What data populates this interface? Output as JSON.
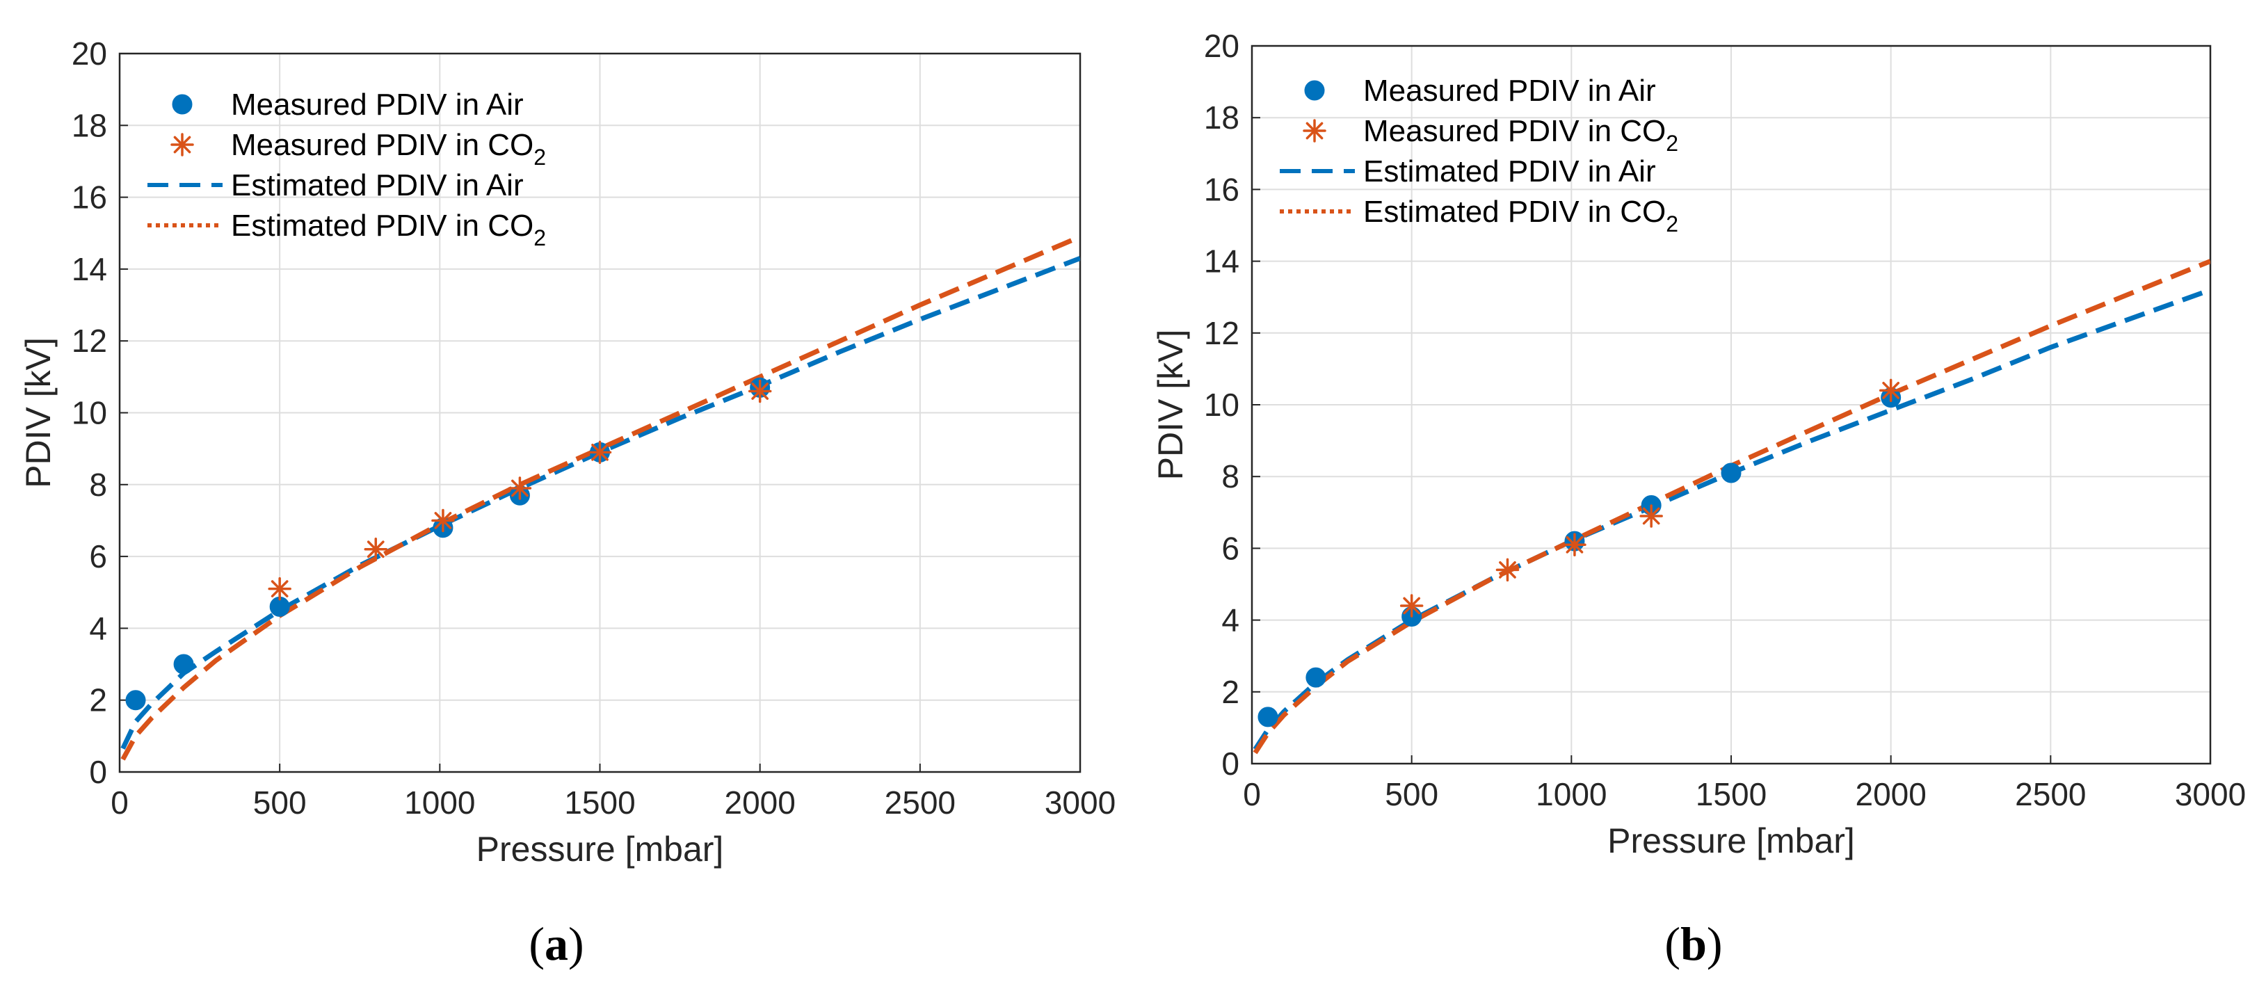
{
  "chart_data": [
    {
      "type": "scatter",
      "panel_label": "a",
      "xlabel": "Pressure [mbar]",
      "ylabel": "PDIV [kV]",
      "xlim": [
        0,
        3000
      ],
      "ylim": [
        0,
        20
      ],
      "xticks": [
        "0",
        "500",
        "1000",
        "1500",
        "2000",
        "2500",
        "3000"
      ],
      "yticks": [
        "0",
        "2",
        "4",
        "6",
        "8",
        "10",
        "12",
        "14",
        "16",
        "18",
        "20"
      ],
      "grid": true,
      "legend_position": "top-left",
      "series": [
        {
          "name": "Measured PDIV in Air",
          "label_main": "Measured PDIV in Air",
          "label_sub": "",
          "kind": "marker-dot",
          "color": "#0072BD",
          "x": [
            50,
            200,
            500,
            1010,
            1250,
            1500,
            2000
          ],
          "y": [
            2.0,
            3.0,
            4.6,
            6.8,
            7.7,
            8.9,
            10.7
          ]
        },
        {
          "name": "Measured PDIV in CO2",
          "label_main": "Measured PDIV in CO",
          "label_sub": "2",
          "kind": "marker-asterisk",
          "color": "#D95319",
          "x": [
            500,
            800,
            1010,
            1250,
            1500,
            2000
          ],
          "y": [
            5.1,
            6.2,
            7.0,
            7.9,
            8.9,
            10.6
          ]
        },
        {
          "name": "Estimated PDIV in Air",
          "label_main": "Estimated PDIV in Air",
          "label_sub": "",
          "kind": "line-dashed",
          "color": "#0072BD",
          "x": [
            10,
            50,
            100,
            200,
            300,
            500,
            750,
            1000,
            1250,
            1500,
            1750,
            2000,
            2250,
            2500,
            2750,
            3000
          ],
          "y": [
            0.65,
            1.4,
            1.9,
            2.75,
            3.35,
            4.5,
            5.75,
            6.85,
            7.9,
            8.9,
            9.85,
            10.75,
            11.7,
            12.6,
            13.45,
            14.3
          ]
        },
        {
          "name": "Estimated PDIV in CO2",
          "label_main": "Estimated PDIV in CO",
          "label_sub": "2",
          "kind": "line-dotted",
          "color": "#D95319",
          "x": [
            10,
            50,
            100,
            200,
            300,
            500,
            750,
            1000,
            1250,
            1500,
            1750,
            2000,
            2250,
            2500,
            2750,
            3000
          ],
          "y": [
            0.35,
            1.0,
            1.5,
            2.35,
            3.1,
            4.35,
            5.7,
            6.9,
            8.0,
            9.0,
            10.0,
            11.0,
            12.0,
            13.0,
            13.95,
            14.9
          ]
        }
      ]
    },
    {
      "type": "scatter",
      "panel_label": "b",
      "xlabel": "Pressure [mbar]",
      "ylabel": "PDIV [kV]",
      "xlim": [
        0,
        3000
      ],
      "ylim": [
        0,
        20
      ],
      "xticks": [
        "0",
        "500",
        "1000",
        "1500",
        "2000",
        "2500",
        "3000"
      ],
      "yticks": [
        "0",
        "2",
        "4",
        "6",
        "8",
        "10",
        "12",
        "14",
        "16",
        "18",
        "20"
      ],
      "grid": true,
      "legend_position": "top-left",
      "series": [
        {
          "name": "Measured PDIV in Air",
          "label_main": "Measured PDIV in Air",
          "label_sub": "",
          "kind": "marker-dot",
          "color": "#0072BD",
          "x": [
            50,
            200,
            500,
            1010,
            1250,
            1500,
            2000
          ],
          "y": [
            1.3,
            2.4,
            4.1,
            6.2,
            7.2,
            8.1,
            10.2
          ]
        },
        {
          "name": "Measured PDIV in CO2",
          "label_main": "Measured PDIV in CO",
          "label_sub": "2",
          "kind": "marker-asterisk",
          "color": "#D95319",
          "x": [
            500,
            800,
            1010,
            1250,
            2000
          ],
          "y": [
            4.4,
            5.4,
            6.1,
            6.9,
            10.4
          ]
        },
        {
          "name": "Estimated PDIV in Air",
          "label_main": "Estimated PDIV in Air",
          "label_sub": "",
          "kind": "line-dashed",
          "color": "#0072BD",
          "x": [
            10,
            50,
            100,
            200,
            300,
            500,
            750,
            1000,
            1250,
            1500,
            1750,
            2000,
            2250,
            2500,
            2750,
            3000
          ],
          "y": [
            0.4,
            0.95,
            1.45,
            2.25,
            2.9,
            4.0,
            5.15,
            6.2,
            7.15,
            8.1,
            9.0,
            9.85,
            10.7,
            11.6,
            12.4,
            13.2
          ]
        },
        {
          "name": "Estimated PDIV in CO2",
          "label_main": "Estimated PDIV in CO",
          "label_sub": "2",
          "kind": "line-dotted",
          "color": "#D95319",
          "x": [
            10,
            50,
            100,
            200,
            300,
            500,
            750,
            1000,
            1250,
            1500,
            1750,
            2000,
            2250,
            2500,
            2750,
            3000
          ],
          "y": [
            0.3,
            0.85,
            1.35,
            2.15,
            2.85,
            3.95,
            5.15,
            6.2,
            7.25,
            8.3,
            9.3,
            10.3,
            11.25,
            12.2,
            13.1,
            14.0
          ]
        }
      ]
    }
  ]
}
